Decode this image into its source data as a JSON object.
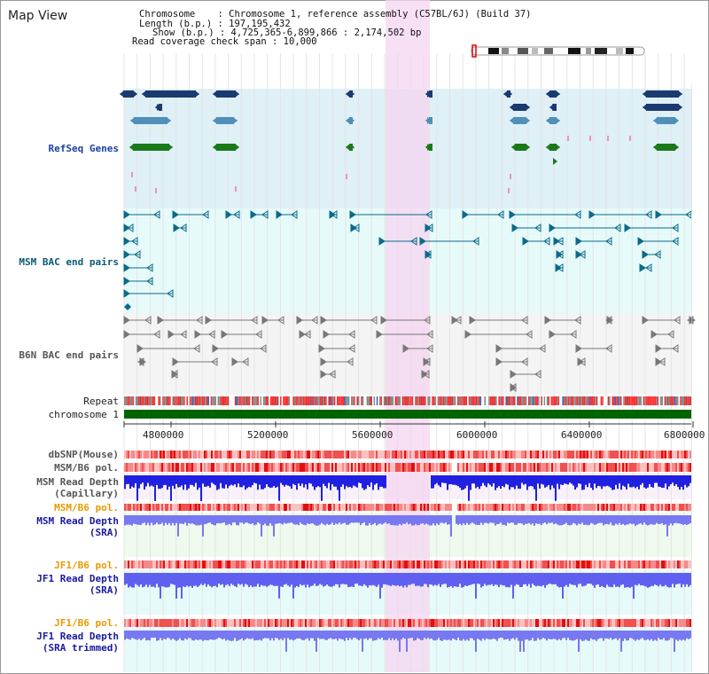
{
  "title": "Map View",
  "info": {
    "line1": "Chromosome    : Chromosome 1, reference assembly (C57BL/6J) (Build 37)",
    "line2": "Length (b.p.) : 197,195,432",
    "line3": "Show (b.p.) : 4,725,365-6,899,866 : 2,174,502 bp",
    "line4": "Read coverage check span : 10,000"
  },
  "tracks": {
    "refseq": "RefSeq Genes",
    "msm_bac": "MSM BAC end pairs",
    "b6n_bac": "B6N BAC end pairs",
    "repeat": "Repeat",
    "chromosome": "chromosome 1",
    "dbsnp": "dbSNP(Mouse)",
    "msm_b6_pol_1": "MSM/B6 pol.",
    "msm_read_depth_cap_1": "MSM Read Depth",
    "msm_read_depth_cap_2": "(Capillary)",
    "msm_b6_pol_2": "MSM/B6 pol.",
    "msm_read_depth_sra_1": "MSM Read Depth",
    "msm_read_depth_sra_2": "(SRA)",
    "jf1_b6_pol_1": "JF1/B6 pol.",
    "jf1_read_depth_sra_1": "JF1 Read Depth",
    "jf1_read_depth_sra_2": "(SRA)",
    "jf1_b6_pol_2": "JF1/B6 pol.",
    "jf1_read_depth_trim_1": "JF1 Read Depth",
    "jf1_read_depth_trim_2": "(SRA trimmed)"
  },
  "axis": {
    "ticks": [
      "4800000",
      "5200000",
      "5600000",
      "6000000",
      "6400000",
      "6800000"
    ]
  },
  "colors": {
    "refseq_bg": "#dff0f7",
    "msm_bg": "#e6fafa",
    "b6n_bg": "#f4f4f4",
    "highlight": "#f5d6f0",
    "refseq_label": "#1c3fa0",
    "msm_label": "#0a5a78",
    "b6n_label": "#555555",
    "blue_label": "#1a1aa0",
    "orange_label": "#e89a00",
    "chromosome_bar": "#006400"
  }
}
